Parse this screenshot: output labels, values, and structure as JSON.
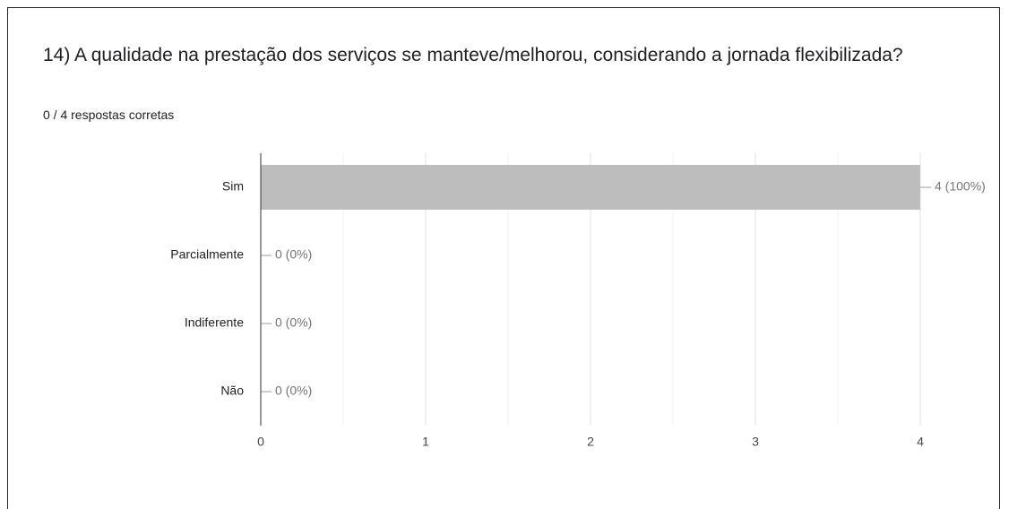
{
  "chart_data": {
    "type": "bar",
    "orientation": "horizontal",
    "title": "14) A qualidade na prestação dos serviços se manteve/melhorou, considerando a jornada flexibilizada?",
    "subtitle": "0 / 4 respostas corretas",
    "categories": [
      "Sim",
      "Parcialmente",
      "Indiferente",
      "Não"
    ],
    "values": [
      4,
      0,
      0,
      0
    ],
    "value_labels": [
      "4 (100%)",
      "0 (0%)",
      "0 (0%)",
      "0 (0%)"
    ],
    "color": "#bdbdbd",
    "xlim": [
      0,
      4
    ],
    "xticks": [
      0,
      1,
      2,
      3,
      4
    ],
    "minor_xticks": [
      0.5,
      1.5,
      2.5,
      3.5
    ],
    "grid": true
  }
}
